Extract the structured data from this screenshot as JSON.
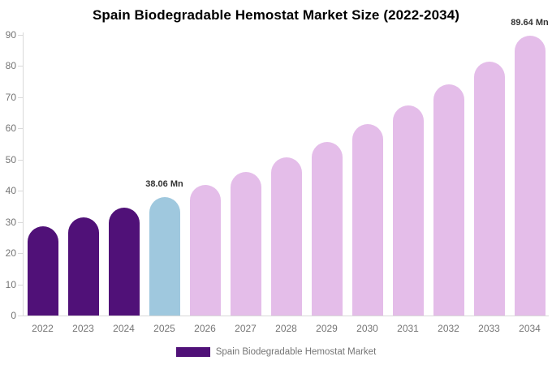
{
  "title": "Spain Biodegradable Hemostat Market Size (2022-2034)",
  "legend": {
    "label": "Spain Biodegradable Hemostat Market",
    "swatch_color": "#501178",
    "label_color": "#757575"
  },
  "axis": {
    "line_color": "#d9d9d9",
    "tick_label_color": "#757575"
  },
  "chart_data": {
    "type": "bar",
    "title": "Spain Biodegradable Hemostat Market Size (2022-2034)",
    "unit": "Mn",
    "categories": [
      "2022",
      "2023",
      "2024",
      "2025",
      "2026",
      "2027",
      "2028",
      "2029",
      "2030",
      "2031",
      "2032",
      "2033",
      "2034"
    ],
    "values": [
      28.61,
      31.46,
      34.6,
      38.06,
      41.86,
      46.04,
      50.64,
      55.69,
      61.26,
      67.37,
      74.1,
      81.5,
      89.64
    ],
    "bar_roles": [
      "historical",
      "historical",
      "historical",
      "estimate",
      "forecast",
      "forecast",
      "forecast",
      "forecast",
      "forecast",
      "forecast",
      "forecast",
      "forecast",
      "forecast"
    ],
    "role_colors": {
      "historical": "#501178",
      "estimate": "#9FC8DE",
      "forecast": "#E4BDE9"
    },
    "annotations": [
      {
        "category": "2025",
        "text": "38.06 Mn"
      },
      {
        "category": "2034",
        "text": "89.64 Mn"
      }
    ],
    "xlabel": "",
    "ylabel": "",
    "ylim": [
      0,
      90
    ],
    "yticks": [
      0,
      10,
      20,
      30,
      40,
      50,
      60,
      70,
      80,
      90
    ],
    "grid": false,
    "legend_position": "bottom",
    "legend_entries": [
      "Spain Biodegradable Hemostat Market"
    ]
  }
}
